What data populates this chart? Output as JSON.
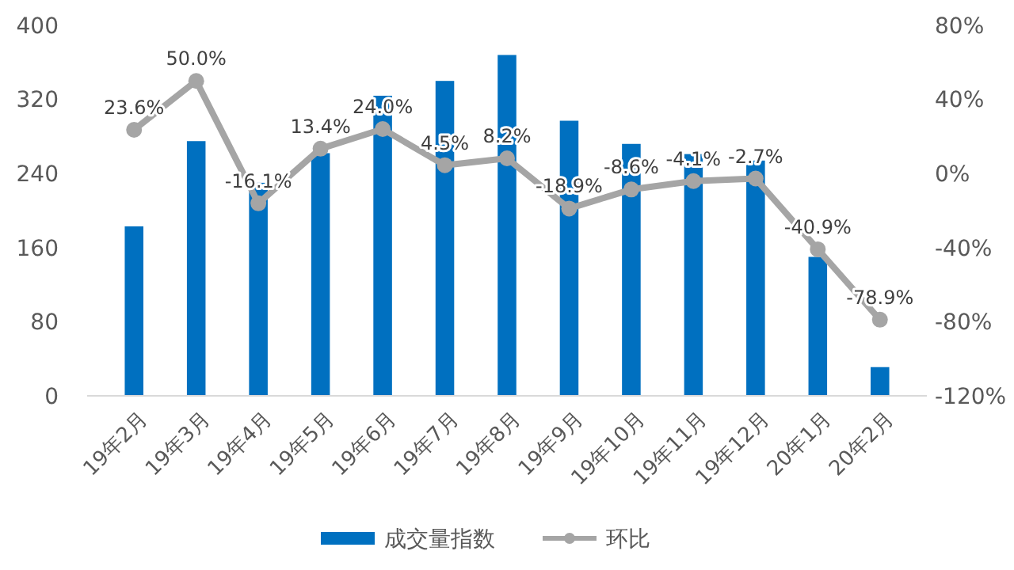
{
  "chart_data": {
    "type": "bar",
    "categories": [
      "19年2月",
      "19年3月",
      "19年4月",
      "19年5月",
      "19年6月",
      "19年7月",
      "19年8月",
      "19年9月",
      "19年10月",
      "19年11月",
      "19年12月",
      "20年1月",
      "20年2月"
    ],
    "series": [
      {
        "name": "成交量指数",
        "color": "#0070c0",
        "values": [
          183,
          275,
          230,
          262,
          324,
          340,
          368,
          297,
          272,
          261,
          254,
          150,
          31
        ]
      },
      {
        "name": "环比",
        "type": "line",
        "axis": "y2",
        "color": "#a5a5a5",
        "values": [
          23.6,
          50.0,
          -16.1,
          13.4,
          24.0,
          4.5,
          8.2,
          -18.9,
          -8.6,
          -4.1,
          -2.7,
          -40.9,
          -78.9
        ],
        "value_labels": [
          "23.6%",
          "50.0%",
          "-16.1%",
          "13.4%",
          "24.0%",
          "4.5%",
          "8.2%",
          "-18.9%",
          "-8.6%",
          "-4.1%",
          "-2.7%",
          "-40.9%",
          "-78.9%"
        ]
      }
    ],
    "ylim": [
      0,
      400
    ],
    "yticks": [
      0,
      80,
      160,
      240,
      320,
      400
    ],
    "y2lim": [
      -120,
      80
    ],
    "y2ticks": [
      {
        "value": -120,
        "label": "-120%"
      },
      {
        "value": -80,
        "label": "-80%"
      },
      {
        "value": -40,
        "label": "-40%"
      },
      {
        "value": 0,
        "label": "0%"
      },
      {
        "value": 40,
        "label": "40%"
      },
      {
        "value": 80,
        "label": "80%"
      }
    ],
    "marker": "circle",
    "legend": "bottom",
    "grid": false
  }
}
